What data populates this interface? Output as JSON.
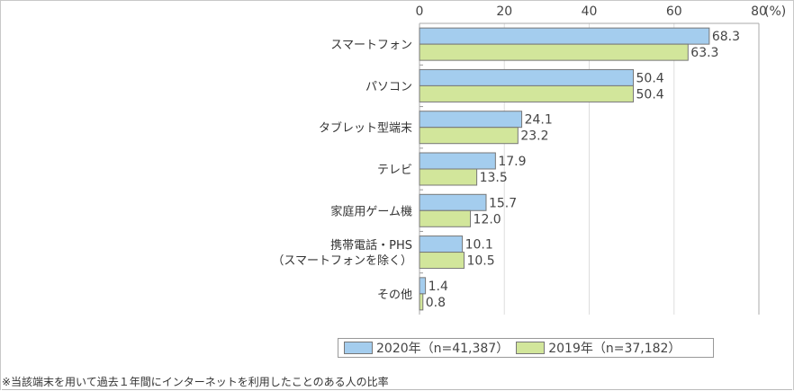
{
  "chart_data": {
    "type": "bar",
    "orientation": "horizontal",
    "categories": [
      "スマートフォン",
      "パソコン",
      "タブレット型端末",
      "テレビ",
      "家庭用ゲーム機",
      "携帯電話・PHS\n（スマートフォンを除く）",
      "その他"
    ],
    "series": [
      {
        "name": "2020年（n=41,387）",
        "color": "#a4cdee",
        "values": [
          68.3,
          50.4,
          24.1,
          17.9,
          15.7,
          10.1,
          1.4
        ]
      },
      {
        "name": "2019年（n=37,182）",
        "color": "#d2e69b",
        "values": [
          63.3,
          50.4,
          23.2,
          13.5,
          12.0,
          10.5,
          0.8
        ]
      }
    ],
    "xlim": [
      0,
      80
    ],
    "xticks": [
      "0",
      "20",
      "40",
      "60",
      "80"
    ],
    "unit": "(%)",
    "grid": true,
    "legend_position": "bottom",
    "footnote": "※当該端末を用いて過去１年間にインターネットを利用したことのある人の比率"
  }
}
